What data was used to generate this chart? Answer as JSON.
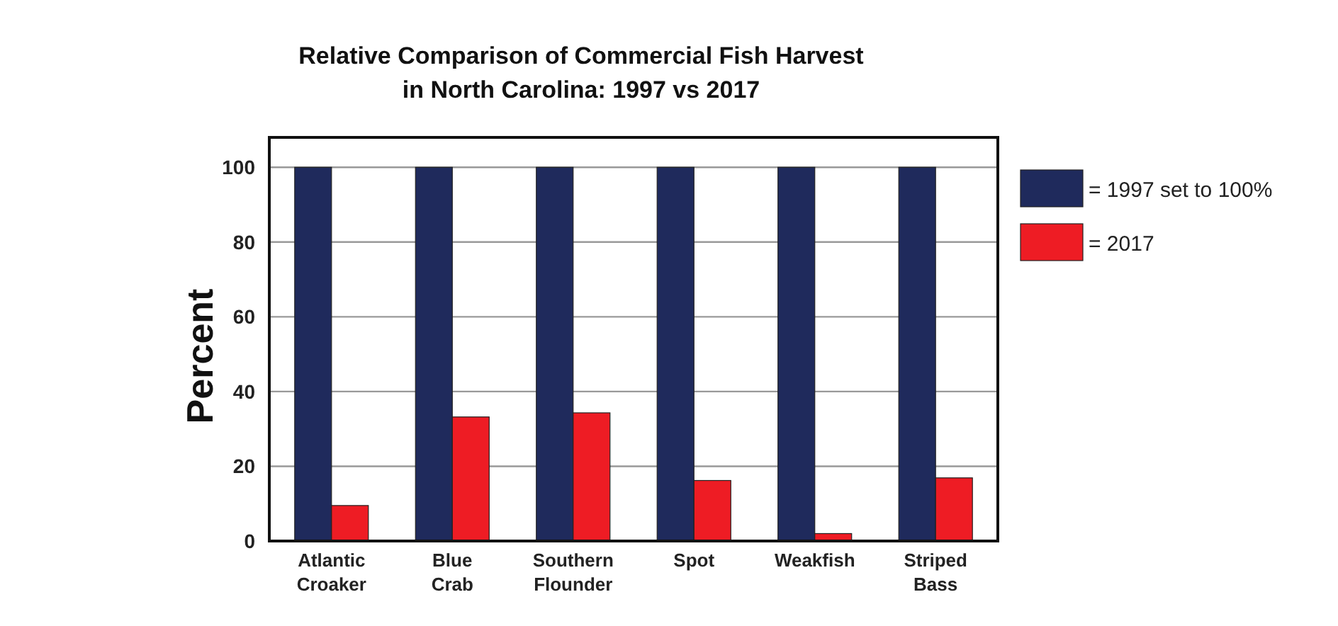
{
  "chart_data": {
    "type": "bar",
    "title": "Relative Comparison of Commercial Fish Harvest\nin North Carolina: 1997 vs 2017",
    "ylabel": "Percent",
    "categories": [
      "Atlantic Croaker",
      "Blue Crab",
      "Southern Flounder",
      "Spot",
      "Weakfish",
      "Striped Bass"
    ],
    "series": [
      {
        "name": "= 1997 set to 100%",
        "color": "#1f2a5c",
        "values": [
          100,
          100,
          100,
          100,
          100,
          100
        ]
      },
      {
        "name": "= 2017",
        "color": "#ee1c24",
        "values": [
          9.5,
          33.2,
          34.3,
          16.2,
          2,
          16.9
        ]
      }
    ],
    "ylim": [
      0,
      108
    ],
    "yticks": [
      0,
      20,
      40,
      60,
      80,
      100
    ],
    "grid": "y",
    "legend": "right"
  }
}
